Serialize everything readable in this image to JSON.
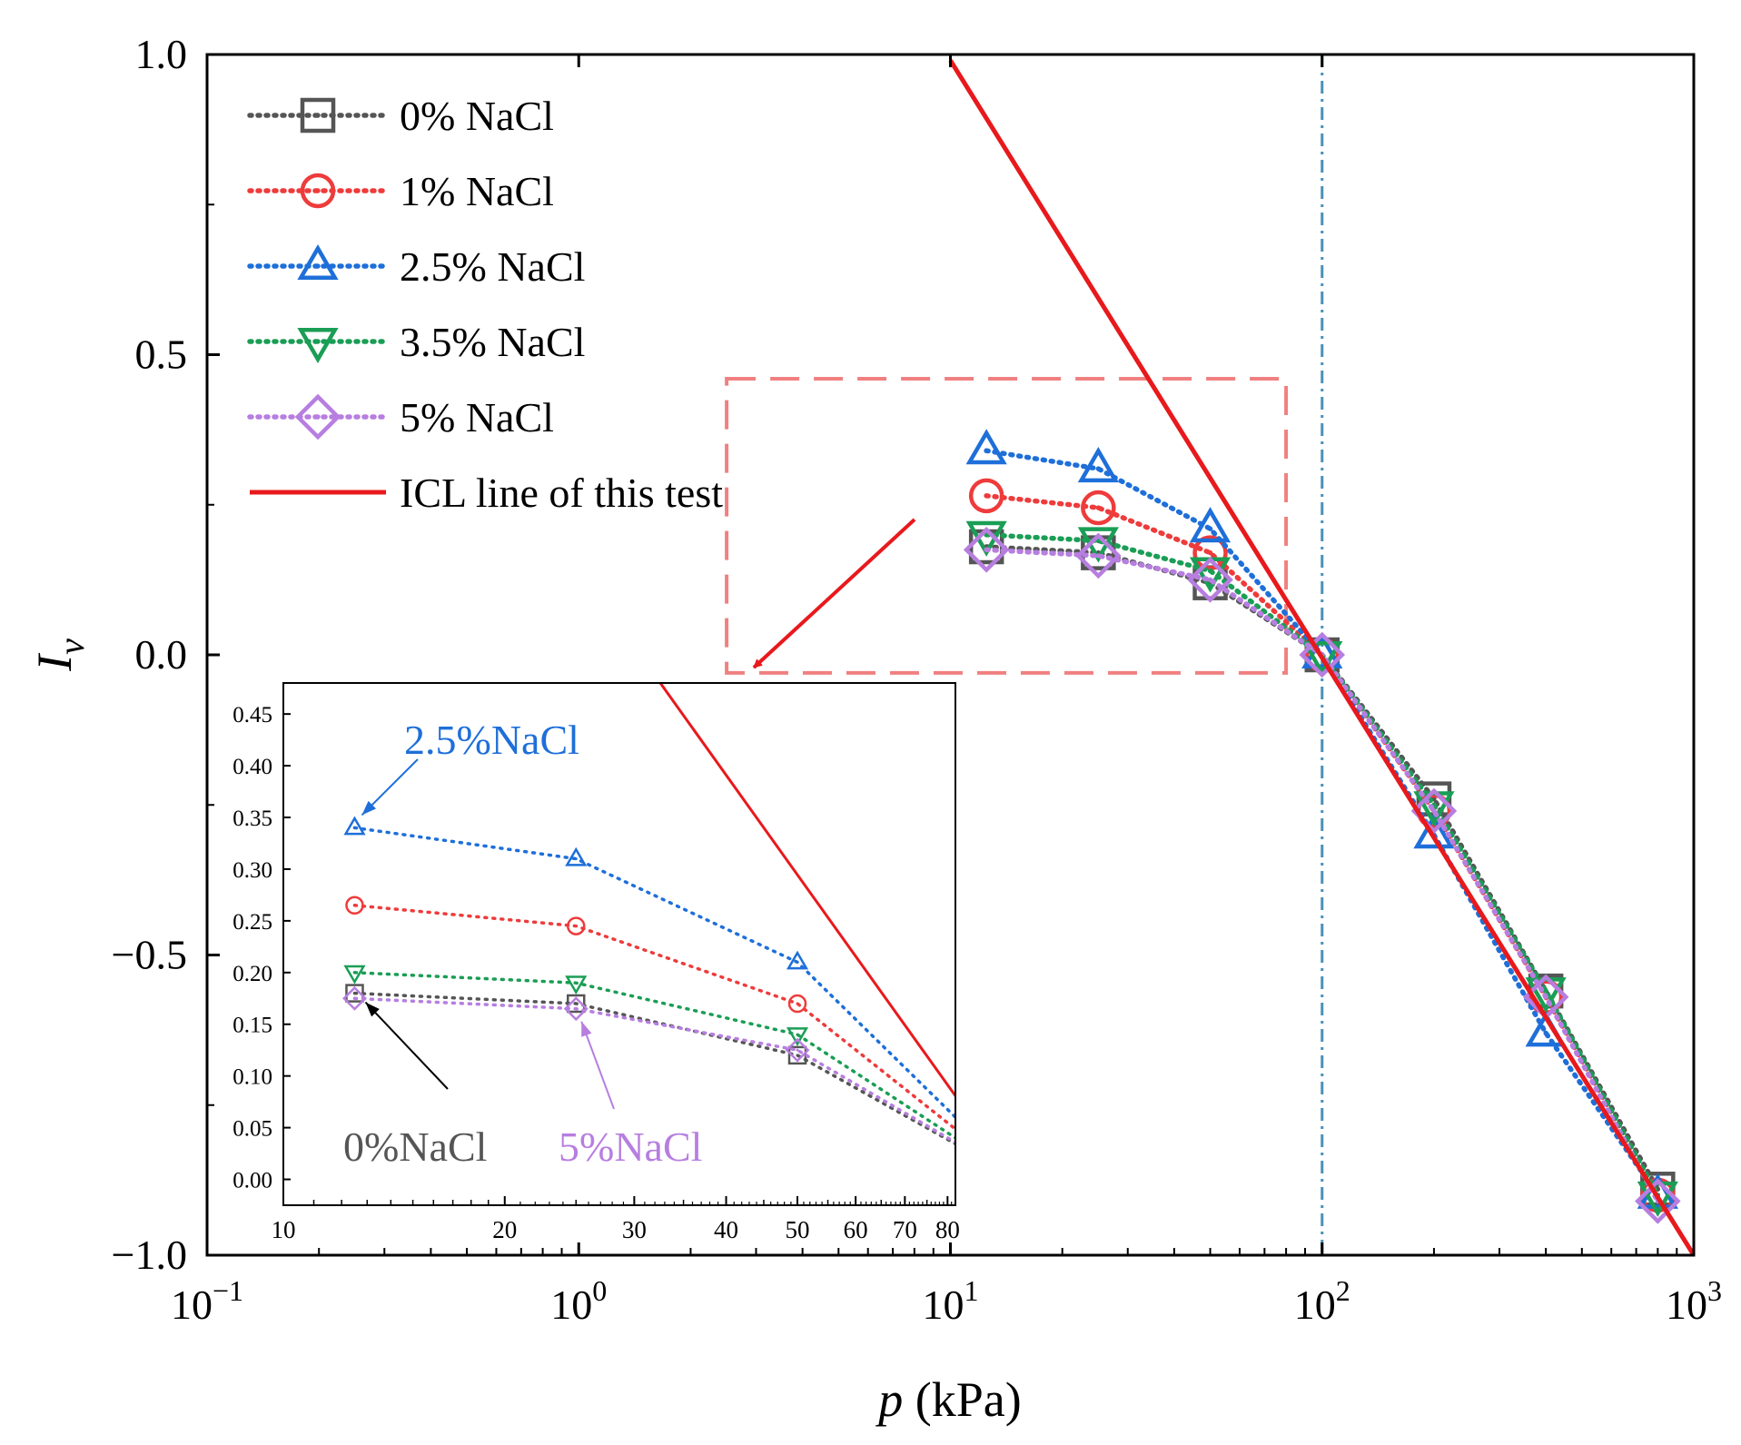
{
  "chart_data": [
    {
      "type": "line",
      "panel": "main",
      "xlabel": "p (kPa)",
      "xlabel_var": "p",
      "xlabel_unit": " (kPa)",
      "ylabel": "I_v",
      "ylabel_main": "I",
      "ylabel_sub": "v",
      "x_scale": "log",
      "xlim": [
        0.1,
        1000
      ],
      "ylim": [
        -1.0,
        1.0
      ],
      "x_ticks": [
        {
          "value": 0.1,
          "base": "10",
          "exp": "−1"
        },
        {
          "value": 1,
          "base": "10",
          "exp": "0"
        },
        {
          "value": 10,
          "base": "10",
          "exp": "1"
        },
        {
          "value": 100,
          "base": "10",
          "exp": "2"
        },
        {
          "value": 1000,
          "base": "10",
          "exp": "3"
        }
      ],
      "y_ticks": [
        {
          "value": 1.0,
          "label": "1.0"
        },
        {
          "value": 0.5,
          "label": "0.5"
        },
        {
          "value": 0.0,
          "label": "0.0"
        },
        {
          "value": -0.5,
          "label": "−0.5"
        },
        {
          "value": -1.0,
          "label": "−1.0"
        }
      ],
      "x": [
        12.5,
        25,
        50,
        100,
        200,
        400,
        800
      ],
      "series": [
        {
          "name": "0% NaCl",
          "color": "#555555",
          "marker": "square",
          "values": [
            0.18,
            0.17,
            0.12,
            0.0,
            -0.24,
            -0.56,
            -0.89
          ]
        },
        {
          "name": "1% NaCl",
          "color": "#ee3b3b",
          "marker": "circle",
          "values": [
            0.265,
            0.245,
            0.17,
            0.0,
            -0.26,
            -0.57,
            -0.9
          ]
        },
        {
          "name": "2.5% NaCl",
          "color": "#1e6fd9",
          "marker": "triangle-up",
          "values": [
            0.34,
            0.31,
            0.21,
            0.0,
            -0.3,
            -0.63,
            -0.9
          ]
        },
        {
          "name": "3.5% NaCl",
          "color": "#1a9e55",
          "marker": "triangle-down",
          "values": [
            0.2,
            0.19,
            0.14,
            0.0,
            -0.25,
            -0.56,
            -0.9
          ]
        },
        {
          "name": "5% NaCl",
          "color": "#b77ee0",
          "marker": "diamond",
          "values": [
            0.175,
            0.165,
            0.125,
            0.0,
            -0.26,
            -0.57,
            -0.91
          ]
        }
      ],
      "reference_line": {
        "name": "ICL line of this test",
        "color": "#e8191c",
        "points": [
          {
            "x": 10,
            "y": 0.99
          },
          {
            "x": 1000,
            "y": -1.0
          }
        ]
      },
      "vertical_line": {
        "x": 100,
        "color": "#4a90b8"
      },
      "zoom_box": {
        "x": [
          2.5,
          80
        ],
        "y": [
          -0.03,
          0.46
        ],
        "color": "#f08080"
      },
      "grid": false,
      "legend_position": "top-left"
    },
    {
      "type": "line",
      "panel": "inset",
      "x_scale": "log",
      "xlim": [
        10,
        82
      ],
      "ylim": [
        -0.025,
        0.48
      ],
      "x_ticks": [
        {
          "value": 10,
          "label": "10"
        },
        {
          "value": 20,
          "label": "20"
        },
        {
          "value": 30,
          "label": "30"
        },
        {
          "value": 40,
          "label": "40"
        },
        {
          "value": 50,
          "label": "50"
        },
        {
          "value": 60,
          "label": "60"
        },
        {
          "value": 70,
          "label": "70"
        },
        {
          "value": 80,
          "label": "80"
        }
      ],
      "y_ticks": [
        {
          "value": 0.0,
          "label": "0.00"
        },
        {
          "value": 0.05,
          "label": "0.05"
        },
        {
          "value": 0.1,
          "label": "0.10"
        },
        {
          "value": 0.15,
          "label": "0.15"
        },
        {
          "value": 0.2,
          "label": "0.20"
        },
        {
          "value": 0.25,
          "label": "0.25"
        },
        {
          "value": 0.3,
          "label": "0.30"
        },
        {
          "value": 0.35,
          "label": "0.35"
        },
        {
          "value": 0.4,
          "label": "0.40"
        },
        {
          "value": 0.45,
          "label": "0.45"
        }
      ],
      "annotations": [
        {
          "text": "2.5%NaCl",
          "color": "#1e6fd9"
        },
        {
          "text": "0%NaCl",
          "color": "#555555"
        },
        {
          "text": "5%NaCl",
          "color": "#b77ee0"
        }
      ]
    }
  ]
}
